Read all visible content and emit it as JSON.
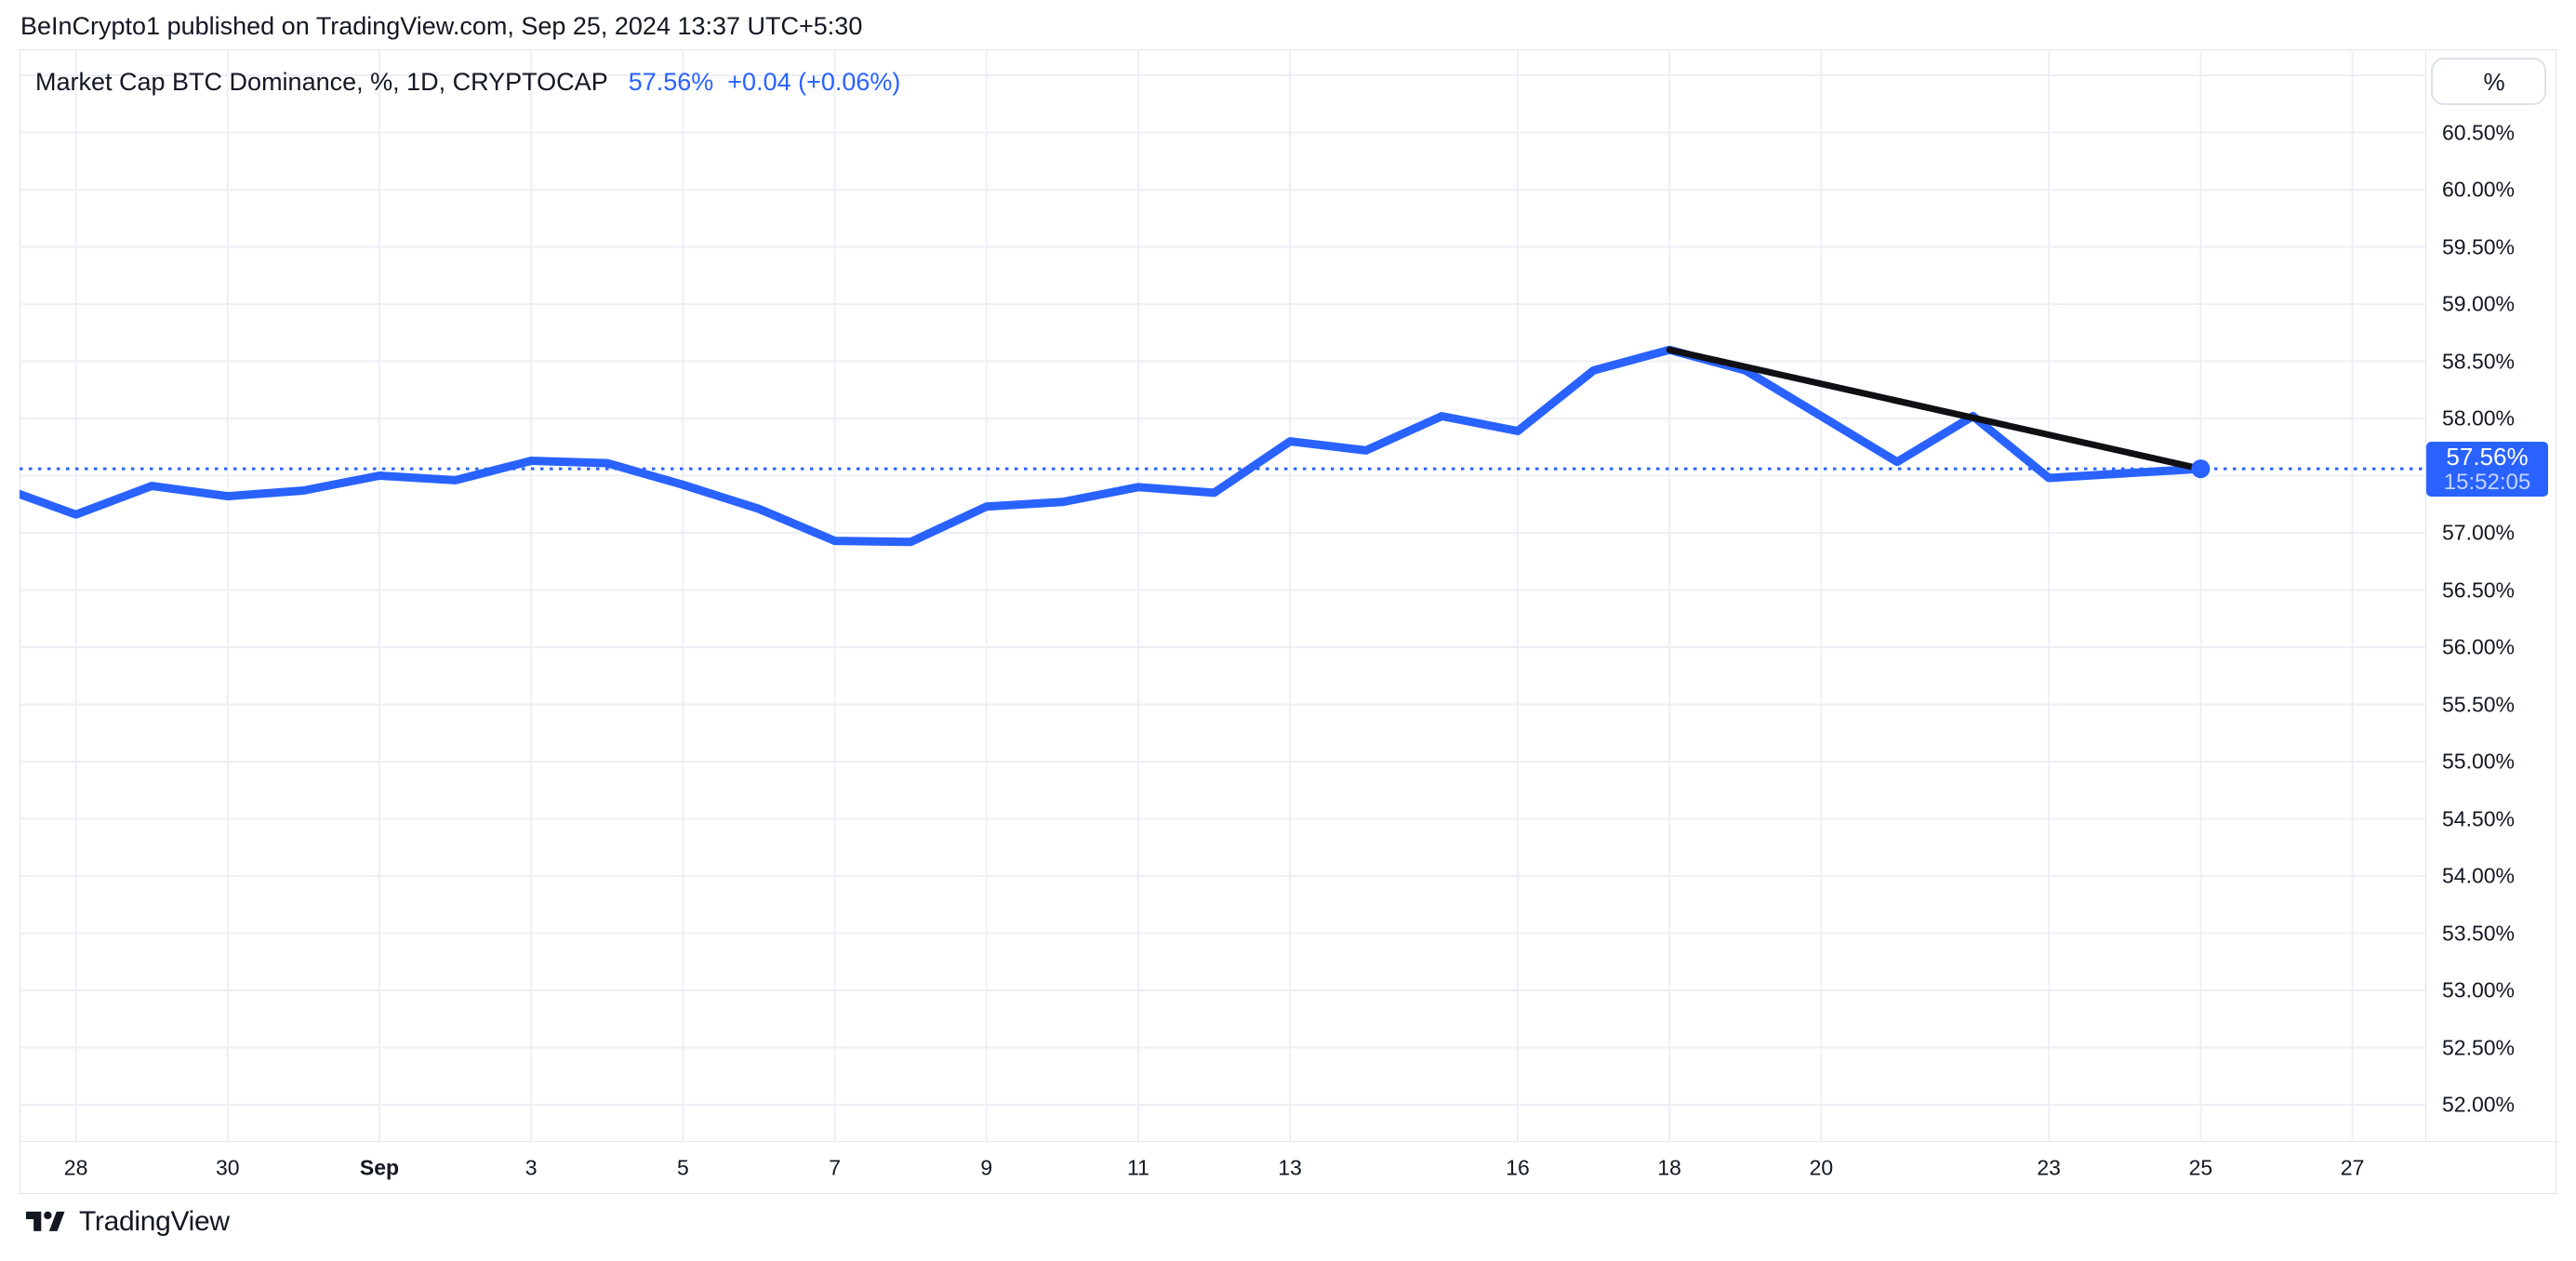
{
  "header": {
    "attribution": "BeInCrypto1 published on TradingView.com, Sep 25, 2024 13:37 UTC+5:30"
  },
  "legend": {
    "title": "Market Cap BTC Dominance, %, 1D, CRYPTOCAP",
    "value": "57.56%",
    "change": "+0.04 (+0.06%)"
  },
  "price_scale": {
    "unit_button": "%",
    "labels": [
      {
        "text": "60.50%",
        "value": 60.5
      },
      {
        "text": "60.00%",
        "value": 60.0
      },
      {
        "text": "59.50%",
        "value": 59.5
      },
      {
        "text": "59.00%",
        "value": 59.0
      },
      {
        "text": "58.50%",
        "value": 58.5
      },
      {
        "text": "58.00%",
        "value": 58.0
      },
      {
        "text": "57.00%",
        "value": 57.0
      },
      {
        "text": "56.50%",
        "value": 56.5
      },
      {
        "text": "56.00%",
        "value": 56.0
      },
      {
        "text": "55.50%",
        "value": 55.5
      },
      {
        "text": "55.00%",
        "value": 55.0
      },
      {
        "text": "54.50%",
        "value": 54.5
      },
      {
        "text": "54.00%",
        "value": 54.0
      },
      {
        "text": "53.50%",
        "value": 53.5
      },
      {
        "text": "53.00%",
        "value": 53.0
      },
      {
        "text": "52.50%",
        "value": 52.5
      },
      {
        "text": "52.00%",
        "value": 52.0
      }
    ],
    "price_label": {
      "value": "57.56%",
      "time": "15:52:05"
    }
  },
  "time_scale": {
    "ticks": [
      {
        "label": "28",
        "day": 1
      },
      {
        "label": "30",
        "day": 3
      },
      {
        "label": "Sep",
        "day": 5,
        "bold": true
      },
      {
        "label": "3",
        "day": 7
      },
      {
        "label": "5",
        "day": 9
      },
      {
        "label": "7",
        "day": 11
      },
      {
        "label": "9",
        "day": 13
      },
      {
        "label": "11",
        "day": 15
      },
      {
        "label": "13",
        "day": 17
      },
      {
        "label": "16",
        "day": 20
      },
      {
        "label": "18",
        "day": 22
      },
      {
        "label": "20",
        "day": 24
      },
      {
        "label": "23",
        "day": 27
      },
      {
        "label": "25",
        "day": 29
      },
      {
        "label": "27",
        "day": 31
      }
    ]
  },
  "footer": {
    "brand": "TradingView"
  },
  "colors": {
    "accent_blue": "#2962FF",
    "trendline_black": "#101014",
    "grid": "#ECEFF5",
    "border": "#E0E3EB",
    "text": "#131722",
    "background": "#FFFFFF"
  },
  "chart_data": {
    "type": "line",
    "title": "Market Cap BTC Dominance, %, 1D, CRYPTOCAP",
    "symbol": "CRYPTOCAP:BTC.D",
    "interval": "1D",
    "x": [
      "Aug 27",
      "Aug 28",
      "Aug 29",
      "Aug 30",
      "Aug 31",
      "Sep 1",
      "Sep 2",
      "Sep 3",
      "Sep 4",
      "Sep 5",
      "Sep 6",
      "Sep 7",
      "Sep 8",
      "Sep 9",
      "Sep 10",
      "Sep 11",
      "Sep 12",
      "Sep 13",
      "Sep 14",
      "Sep 15",
      "Sep 16",
      "Sep 17",
      "Sep 18",
      "Sep 19",
      "Sep 20",
      "Sep 21",
      "Sep 22",
      "Sep 23",
      "Sep 24",
      "Sep 25"
    ],
    "values": [
      57.4,
      57.16,
      57.41,
      57.32,
      57.37,
      57.5,
      57.46,
      57.63,
      57.61,
      57.42,
      57.21,
      56.93,
      56.92,
      57.23,
      57.27,
      57.4,
      57.35,
      57.8,
      57.72,
      58.02,
      57.89,
      58.42,
      58.6,
      58.42,
      58.02,
      57.62,
      58.02,
      57.48,
      57.52,
      57.56
    ],
    "ylabel": "%",
    "ylim": [
      51.85,
      61.25
    ],
    "y_tick_step": 0.5,
    "grid": true,
    "legend_position": "top-left",
    "baseline": {
      "value": 57.56,
      "style": "dotted"
    },
    "current": {
      "value": 57.56,
      "time": "15:52:05",
      "change_abs": "+0.04",
      "change_pct": "+0.06%"
    },
    "trendline": {
      "from_x": "Sep 18",
      "from_value": 58.6,
      "to_x": "Sep 25",
      "to_value": 57.56
    }
  }
}
